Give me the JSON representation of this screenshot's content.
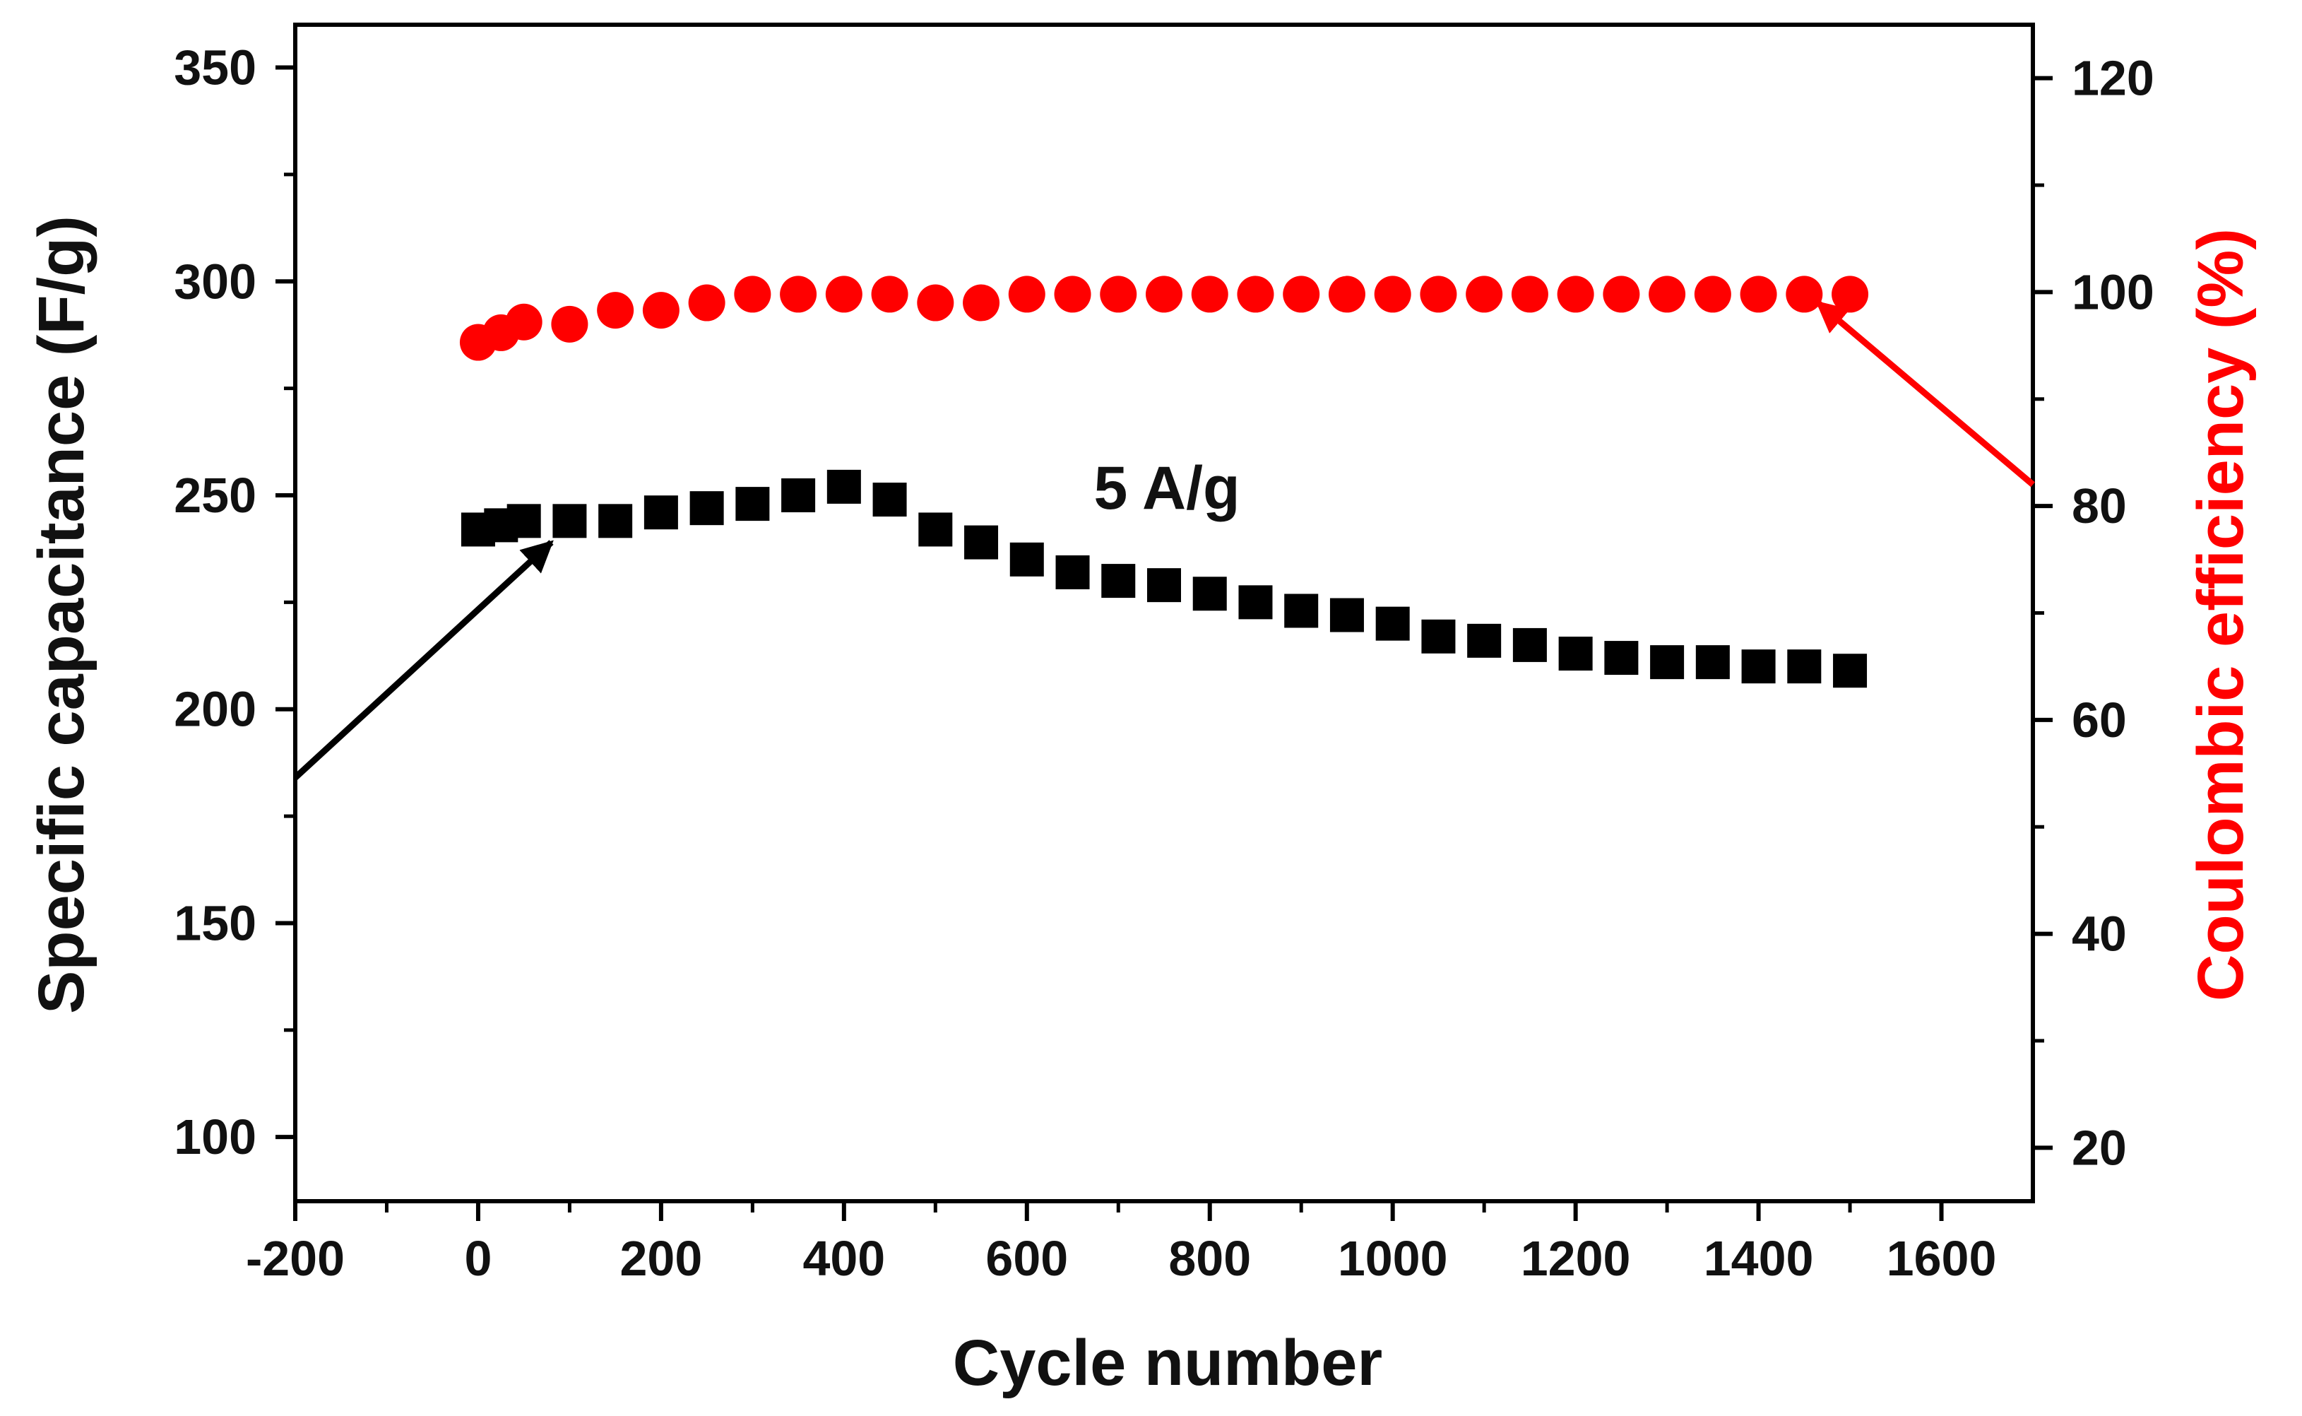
{
  "chart_data": {
    "type": "scatter",
    "title": "",
    "xlabel": "Cycle number",
    "ylabel": "Specific capacitance (F/g)",
    "y2label": "Coulombic efficiency (%)",
    "xlim": [
      -200,
      1700
    ],
    "ylim": [
      85,
      360
    ],
    "y2lim": [
      15,
      125
    ],
    "xticks": [
      "-200",
      "0",
      "200",
      "400",
      "600",
      "800",
      "1000",
      "1200",
      "1400",
      "1600"
    ],
    "yticks": [
      "100",
      "150",
      "200",
      "250",
      "300",
      "350"
    ],
    "y2ticks": [
      "20",
      "40",
      "60",
      "80",
      "100",
      "120"
    ],
    "annotation": "5 A/g",
    "colors": {
      "capacitance": "#000000",
      "efficiency": "#ff0000",
      "axis": "#000000"
    },
    "series": [
      {
        "name": "Specific capacitance",
        "axis": "left",
        "marker": "square",
        "x": [
          0,
          25,
          50,
          100,
          150,
          200,
          250,
          300,
          350,
          400,
          450,
          500,
          550,
          600,
          650,
          700,
          750,
          800,
          850,
          900,
          950,
          1000,
          1050,
          1100,
          1150,
          1200,
          1250,
          1300,
          1350,
          1400,
          1450,
          1500
        ],
        "values": [
          242,
          243,
          244,
          244,
          244,
          246,
          247,
          248,
          250,
          252,
          249,
          242,
          239,
          235,
          232,
          230,
          229,
          227,
          225,
          223,
          222,
          220,
          217,
          216,
          215,
          213,
          212,
          211,
          211,
          210,
          210,
          209
        ]
      },
      {
        "name": "Coulombic efficiency",
        "axis": "right",
        "marker": "circle",
        "x": [
          0,
          25,
          50,
          100,
          150,
          200,
          250,
          300,
          350,
          400,
          450,
          500,
          550,
          600,
          650,
          700,
          750,
          800,
          850,
          900,
          950,
          1000,
          1050,
          1100,
          1150,
          1200,
          1250,
          1300,
          1350,
          1400,
          1450,
          1500
        ],
        "values": [
          95.3,
          96.2,
          97.2,
          97.0,
          98.3,
          98.3,
          99.0,
          99.8,
          99.8,
          99.8,
          99.8,
          99.0,
          99.0,
          99.8,
          99.8,
          99.8,
          99.8,
          99.8,
          99.8,
          99.8,
          99.8,
          99.8,
          99.8,
          99.8,
          99.8,
          99.8,
          99.8,
          99.8,
          99.8,
          99.8,
          99.8,
          99.8
        ]
      }
    ],
    "arrows": [
      {
        "series": "Specific capacitance",
        "points_to": "left axis",
        "from": [
          -200,
          184
        ],
        "to": [
          80,
          239
        ]
      },
      {
        "series": "Coulombic efficiency",
        "points_to": "right axis",
        "from": [
          1700,
          82
        ],
        "to": [
          1465,
          99
        ]
      }
    ]
  }
}
